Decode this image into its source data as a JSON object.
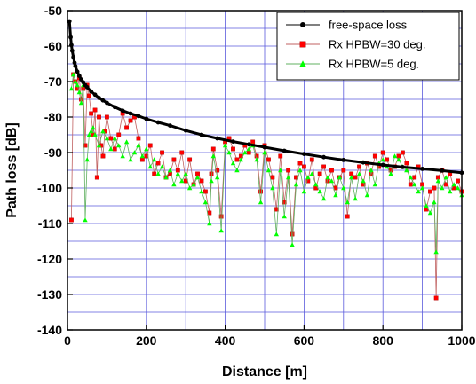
{
  "chart_data": {
    "type": "line",
    "title": "",
    "xlabel": "Distance [m]",
    "ylabel": "Path loss [dB]",
    "xlim": [
      0,
      1000
    ],
    "ylim": [
      -140,
      -50
    ],
    "xticks": [
      0,
      200,
      400,
      600,
      800,
      1000
    ],
    "yticks": [
      -50,
      -60,
      -70,
      -80,
      -90,
      -100,
      -110,
      -120,
      -130,
      -140
    ],
    "grid": true,
    "legend_position": "top-right",
    "series": [
      {
        "name": "free-space loss",
        "color": "#000000",
        "marker": "circle",
        "x": [
          5,
          8,
          10,
          12,
          15,
          18,
          20,
          25,
          30,
          35,
          40,
          45,
          50,
          60,
          70,
          80,
          90,
          100,
          120,
          140,
          160,
          180,
          200,
          230,
          260,
          300,
          340,
          380,
          420,
          460,
          500,
          550,
          600,
          650,
          700,
          750,
          800,
          850,
          900,
          950,
          1000
        ],
        "values": [
          -53.0,
          -57.5,
          -59.7,
          -61.3,
          -63.1,
          -64.7,
          -65.6,
          -67.2,
          -68.4,
          -69.4,
          -70.2,
          -71.0,
          -71.6,
          -72.8,
          -73.7,
          -74.6,
          -75.3,
          -76.0,
          -77.2,
          -78.2,
          -79.0,
          -79.7,
          -80.5,
          -81.5,
          -82.4,
          -83.8,
          -85.0,
          -86.0,
          -86.9,
          -87.7,
          -88.5,
          -89.5,
          -90.4,
          -91.3,
          -92.1,
          -92.8,
          -93.5,
          -94.1,
          -94.6,
          -95.1,
          -95.7
        ]
      },
      {
        "name": "Rx HPBW=30 deg.",
        "color": "#ff0000",
        "marker": "square",
        "x": [
          10,
          15,
          20,
          25,
          30,
          35,
          40,
          45,
          50,
          55,
          60,
          65,
          70,
          75,
          80,
          85,
          90,
          95,
          100,
          110,
          120,
          130,
          140,
          150,
          160,
          170,
          180,
          190,
          200,
          210,
          220,
          230,
          240,
          250,
          260,
          270,
          280,
          290,
          300,
          310,
          320,
          330,
          340,
          350,
          360,
          365,
          370,
          380,
          390,
          400,
          410,
          420,
          430,
          440,
          450,
          460,
          470,
          480,
          490,
          500,
          510,
          520,
          530,
          540,
          550,
          560,
          570,
          580,
          590,
          600,
          610,
          620,
          630,
          640,
          650,
          660,
          670,
          680,
          690,
          700,
          710,
          720,
          730,
          740,
          750,
          760,
          770,
          780,
          790,
          800,
          810,
          820,
          830,
          840,
          850,
          860,
          870,
          880,
          890,
          900,
          910,
          920,
          930,
          935,
          940,
          950,
          960,
          970,
          980,
          990,
          1000
        ],
        "values": [
          -109,
          -68,
          -70,
          -72,
          -69,
          -75,
          -72,
          -88,
          -71,
          -74,
          -79,
          -85,
          -78,
          -97,
          -80,
          -88,
          -91,
          -84,
          -80,
          -86,
          -89,
          -85,
          -79,
          -83,
          -81,
          -80,
          -86,
          -92,
          -91,
          -88,
          -96,
          -93,
          -90,
          -97,
          -96,
          -92,
          -95,
          -90,
          -98,
          -92,
          -99,
          -96,
          -98,
          -101,
          -107,
          -96,
          -89,
          -95,
          -108,
          -87,
          -86,
          -89,
          -92,
          -91,
          -88,
          -90,
          -87,
          -91,
          -101,
          -88,
          -92,
          -97,
          -106,
          -91,
          -104,
          -95,
          -113,
          -97,
          -93,
          -94,
          -98,
          -92,
          -100,
          -96,
          -94,
          -98,
          -95,
          -100,
          -97,
          -95,
          -108,
          -96,
          -97,
          -94,
          -99,
          -93,
          -96,
          -91,
          -94,
          -90,
          -92,
          -95,
          -94,
          -91,
          -90,
          -93,
          -99,
          -97,
          -94,
          -99,
          -106,
          -101,
          -100,
          -131,
          -97,
          -95,
          -99,
          -96,
          -100,
          -98,
          -101
        ]
      },
      {
        "name": "Rx HPBW=5 deg.",
        "color": "#00ff00",
        "marker": "triangle",
        "x": [
          10,
          15,
          20,
          25,
          30,
          35,
          40,
          45,
          50,
          55,
          60,
          65,
          70,
          80,
          90,
          100,
          110,
          120,
          130,
          140,
          150,
          160,
          170,
          180,
          190,
          200,
          210,
          220,
          230,
          240,
          250,
          260,
          270,
          280,
          290,
          300,
          310,
          320,
          330,
          340,
          350,
          360,
          365,
          370,
          380,
          390,
          400,
          410,
          420,
          430,
          440,
          450,
          460,
          470,
          480,
          490,
          500,
          510,
          520,
          530,
          540,
          550,
          560,
          570,
          580,
          590,
          600,
          610,
          620,
          630,
          640,
          650,
          660,
          670,
          680,
          690,
          700,
          710,
          720,
          730,
          740,
          750,
          760,
          770,
          780,
          790,
          800,
          810,
          820,
          830,
          840,
          850,
          860,
          870,
          880,
          890,
          900,
          910,
          920,
          930,
          935,
          940,
          950,
          960,
          970,
          980,
          990,
          1000
        ],
        "values": [
          -72,
          -68,
          -70,
          -71,
          -73,
          -76,
          -71,
          -109,
          -92,
          -85,
          -84,
          -83,
          -85,
          -88,
          -84,
          -86,
          -89,
          -86,
          -88,
          -91,
          -87,
          -92,
          -90,
          -88,
          -91,
          -89,
          -94,
          -92,
          -96,
          -94,
          -97,
          -95,
          -99,
          -96,
          -98,
          -96,
          -100,
          -99,
          -97,
          -101,
          -104,
          -110,
          -98,
          -91,
          -97,
          -112,
          -88,
          -90,
          -93,
          -95,
          -92,
          -90,
          -89,
          -88,
          -92,
          -104,
          -90,
          -95,
          -100,
          -113,
          -95,
          -108,
          -97,
          -116,
          -99,
          -95,
          -101,
          -97,
          -96,
          -99,
          -101,
          -103,
          -97,
          -98,
          -102,
          -97,
          -100,
          -104,
          -97,
          -103,
          -96,
          -98,
          -102,
          -95,
          -99,
          -93,
          -92,
          -94,
          -96,
          -91,
          -92,
          -94,
          -95,
          -97,
          -99,
          -101,
          -100,
          -105,
          -107,
          -104,
          -118,
          -98,
          -100,
          -97,
          -101,
          -99,
          -100,
          -102
        ]
      }
    ]
  }
}
